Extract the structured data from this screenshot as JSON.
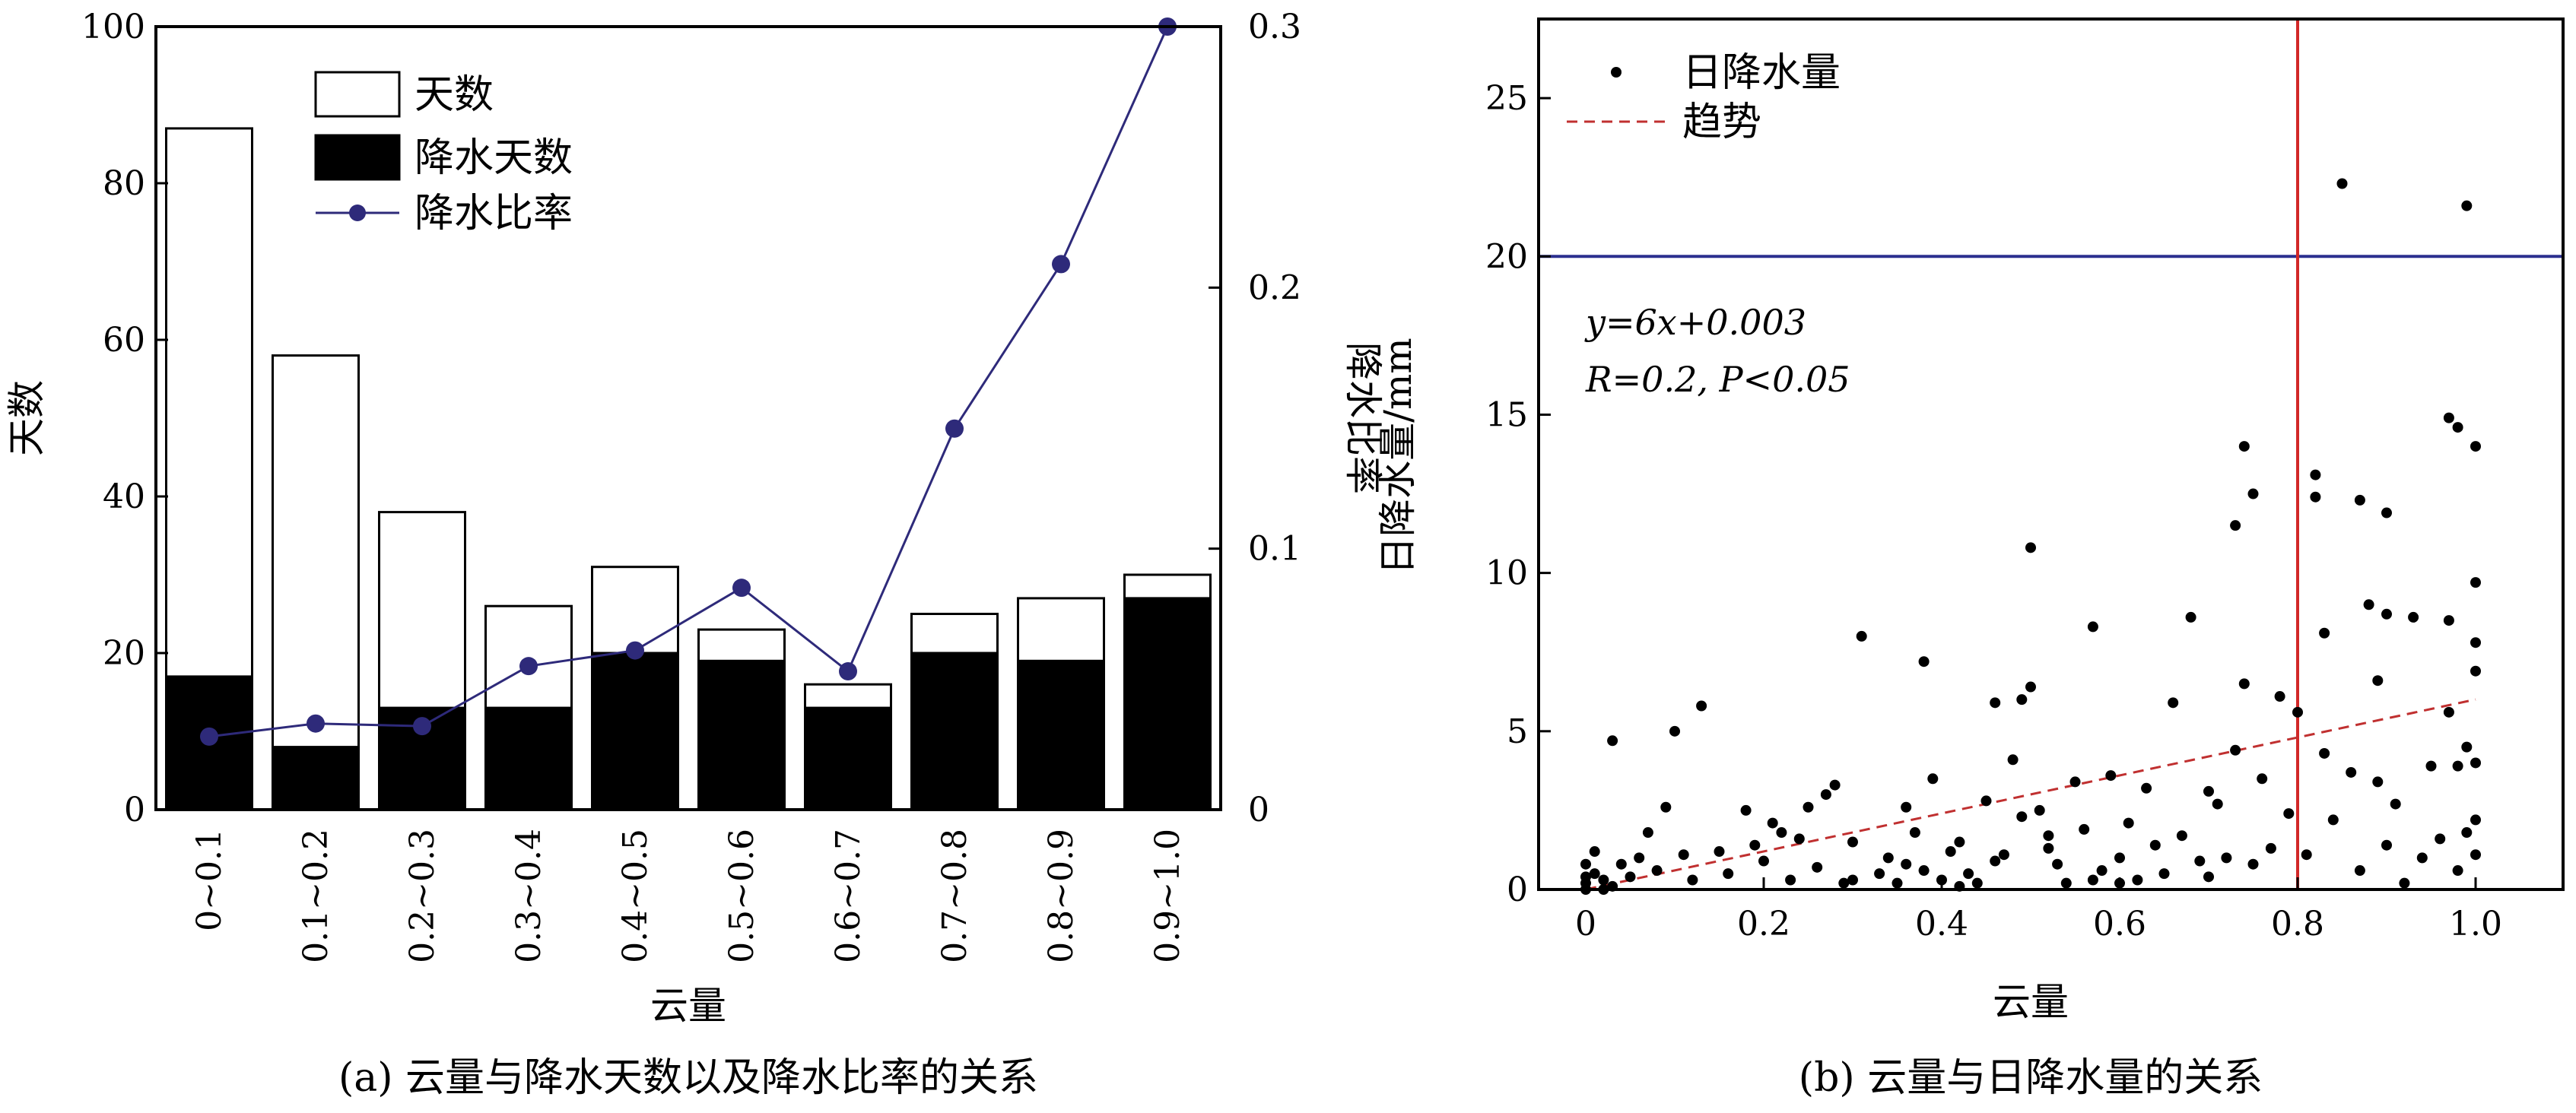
{
  "chart_data": [
    {
      "type": "bar",
      "caption": "(a) 云量与降水天数以及降水比率的关系",
      "xlabel": "云量",
      "ylabel": "天数",
      "y2label": "降水比率",
      "categories": [
        "0~0.1",
        "0.1~0.2",
        "0.2~0.3",
        "0.3~0.4",
        "0.4~0.5",
        "0.5~0.6",
        "0.6~0.7",
        "0.7~0.8",
        "0.8~0.9",
        "0.9~1.0"
      ],
      "ylim": [
        0,
        100
      ],
      "y2lim": [
        0,
        0.3
      ],
      "yticks": [
        "0",
        "20",
        "40",
        "60",
        "80",
        "100"
      ],
      "y2ticks": [
        "0",
        "0.1",
        "0.2",
        "0.3"
      ],
      "legend_position": "top-left",
      "series": [
        {
          "name": "天数",
          "kind": "bar",
          "color": "#ffffff",
          "values": [
            87,
            58,
            38,
            26,
            31,
            23,
            16,
            25,
            27,
            30
          ]
        },
        {
          "name": "降水天数",
          "kind": "bar",
          "color": "#000000",
          "values": [
            17,
            8,
            13,
            13,
            20,
            19,
            13,
            20,
            19,
            27
          ]
        },
        {
          "name": "降水比率",
          "kind": "line",
          "axis": "right",
          "color": "#2e2a7a",
          "values": [
            0.028,
            0.033,
            0.032,
            0.055,
            0.061,
            0.085,
            0.053,
            0.146,
            0.209,
            0.3
          ]
        }
      ]
    },
    {
      "type": "scatter",
      "caption": "(b) 云量与日降水量的关系",
      "xlabel": "云量",
      "ylabel": "日降水量/mm",
      "xlim": [
        0,
        1.07
      ],
      "ylim": [
        0,
        27.5
      ],
      "xticks": [
        "0",
        "0.2",
        "0.4",
        "0.6",
        "0.8",
        "1.0"
      ],
      "yticks": [
        "0",
        "5",
        "10",
        "15",
        "20",
        "25"
      ],
      "legend_position": "top-left",
      "legend": {
        "points": "日降水量",
        "trend": "趋势"
      },
      "annotation": {
        "equation": "y=6x+0.003",
        "stats": "R=0.2, P<0.05"
      },
      "trend": {
        "slope": 6,
        "intercept": 0.003,
        "x_range": [
          0,
          1.0
        ],
        "color": "#c03030"
      },
      "reference_lines": {
        "horizontal_y": 20,
        "horizontal_color": "#2b2f8f",
        "vertical_x": 0.8,
        "vertical_color": "#d22828"
      },
      "points": [
        [
          0.0,
          0.8
        ],
        [
          0.0,
          0.4
        ],
        [
          0.0,
          0.2
        ],
        [
          0.0,
          0.0
        ],
        [
          0.01,
          1.2
        ],
        [
          0.01,
          0.5
        ],
        [
          0.02,
          0.3
        ],
        [
          0.02,
          0.0
        ],
        [
          0.03,
          4.7
        ],
        [
          0.03,
          0.1
        ],
        [
          0.04,
          0.8
        ],
        [
          0.05,
          0.4
        ],
        [
          0.06,
          1.0
        ],
        [
          0.07,
          1.8
        ],
        [
          0.08,
          0.6
        ],
        [
          0.09,
          2.6
        ],
        [
          0.1,
          5.0
        ],
        [
          0.11,
          1.1
        ],
        [
          0.12,
          0.3
        ],
        [
          0.13,
          5.8
        ],
        [
          0.15,
          1.2
        ],
        [
          0.16,
          0.5
        ],
        [
          0.18,
          2.5
        ],
        [
          0.19,
          1.4
        ],
        [
          0.2,
          0.9
        ],
        [
          0.21,
          2.1
        ],
        [
          0.22,
          1.8
        ],
        [
          0.23,
          0.3
        ],
        [
          0.24,
          1.6
        ],
        [
          0.25,
          2.6
        ],
        [
          0.26,
          0.7
        ],
        [
          0.27,
          3.0
        ],
        [
          0.28,
          3.3
        ],
        [
          0.29,
          0.2
        ],
        [
          0.3,
          1.5
        ],
        [
          0.31,
          8.0
        ],
        [
          0.33,
          0.5
        ],
        [
          0.34,
          1.0
        ],
        [
          0.35,
          0.2
        ],
        [
          0.36,
          2.6
        ],
        [
          0.37,
          1.8
        ],
        [
          0.38,
          7.2
        ],
        [
          0.38,
          0.6
        ],
        [
          0.39,
          3.5
        ],
        [
          0.4,
          0.3
        ],
        [
          0.41,
          1.2
        ],
        [
          0.42,
          0.1
        ],
        [
          0.43,
          0.5
        ],
        [
          0.44,
          0.2
        ],
        [
          0.45,
          2.8
        ],
        [
          0.46,
          5.9
        ],
        [
          0.47,
          1.1
        ],
        [
          0.48,
          4.1
        ],
        [
          0.49,
          6.0
        ],
        [
          0.49,
          2.3
        ],
        [
          0.5,
          10.8
        ],
        [
          0.5,
          6.4
        ],
        [
          0.51,
          2.5
        ],
        [
          0.52,
          1.3
        ],
        [
          0.53,
          0.8
        ],
        [
          0.54,
          0.2
        ],
        [
          0.55,
          3.4
        ],
        [
          0.56,
          1.9
        ],
        [
          0.57,
          8.3
        ],
        [
          0.58,
          0.6
        ],
        [
          0.59,
          3.6
        ],
        [
          0.6,
          1.0
        ],
        [
          0.61,
          2.1
        ],
        [
          0.62,
          0.3
        ],
        [
          0.63,
          3.2
        ],
        [
          0.64,
          1.4
        ],
        [
          0.65,
          0.5
        ],
        [
          0.66,
          5.9
        ],
        [
          0.67,
          1.7
        ],
        [
          0.68,
          8.6
        ],
        [
          0.69,
          0.9
        ],
        [
          0.7,
          3.1
        ],
        [
          0.71,
          2.7
        ],
        [
          0.72,
          1.0
        ],
        [
          0.73,
          4.4
        ],
        [
          0.73,
          11.5
        ],
        [
          0.74,
          14.0
        ],
        [
          0.74,
          6.5
        ],
        [
          0.75,
          12.5
        ],
        [
          0.75,
          0.8
        ],
        [
          0.76,
          3.5
        ],
        [
          0.77,
          1.3
        ],
        [
          0.78,
          6.1
        ],
        [
          0.79,
          2.4
        ],
        [
          0.8,
          5.6
        ],
        [
          0.81,
          1.1
        ],
        [
          0.82,
          13.1
        ],
        [
          0.82,
          12.4
        ],
        [
          0.83,
          8.1
        ],
        [
          0.83,
          4.3
        ],
        [
          0.84,
          2.2
        ],
        [
          0.85,
          22.3
        ],
        [
          0.86,
          3.7
        ],
        [
          0.87,
          0.6
        ],
        [
          0.87,
          12.3
        ],
        [
          0.88,
          9.0
        ],
        [
          0.89,
          6.6
        ],
        [
          0.89,
          3.4
        ],
        [
          0.9,
          11.9
        ],
        [
          0.9,
          8.7
        ],
        [
          0.9,
          1.4
        ],
        [
          0.91,
          2.7
        ],
        [
          0.92,
          0.2
        ],
        [
          0.93,
          8.6
        ],
        [
          0.94,
          1.0
        ],
        [
          0.95,
          3.9
        ],
        [
          0.96,
          1.6
        ],
        [
          0.97,
          14.9
        ],
        [
          0.97,
          8.5
        ],
        [
          0.97,
          5.6
        ],
        [
          0.98,
          14.6
        ],
        [
          0.98,
          3.9
        ],
        [
          0.98,
          0.6
        ],
        [
          0.99,
          21.6
        ],
        [
          0.99,
          4.5
        ],
        [
          0.99,
          1.8
        ],
        [
          1.0,
          14.0
        ],
        [
          1.0,
          9.7
        ],
        [
          1.0,
          7.8
        ],
        [
          1.0,
          6.9
        ],
        [
          1.0,
          4.0
        ],
        [
          1.0,
          2.2
        ],
        [
          1.0,
          1.1
        ],
        [
          0.46,
          0.9
        ],
        [
          0.57,
          0.3
        ],
        [
          0.3,
          0.3
        ],
        [
          0.36,
          0.8
        ],
        [
          0.42,
          1.5
        ],
        [
          0.52,
          1.7
        ],
        [
          0.6,
          0.2
        ],
        [
          0.7,
          0.4
        ]
      ]
    }
  ]
}
